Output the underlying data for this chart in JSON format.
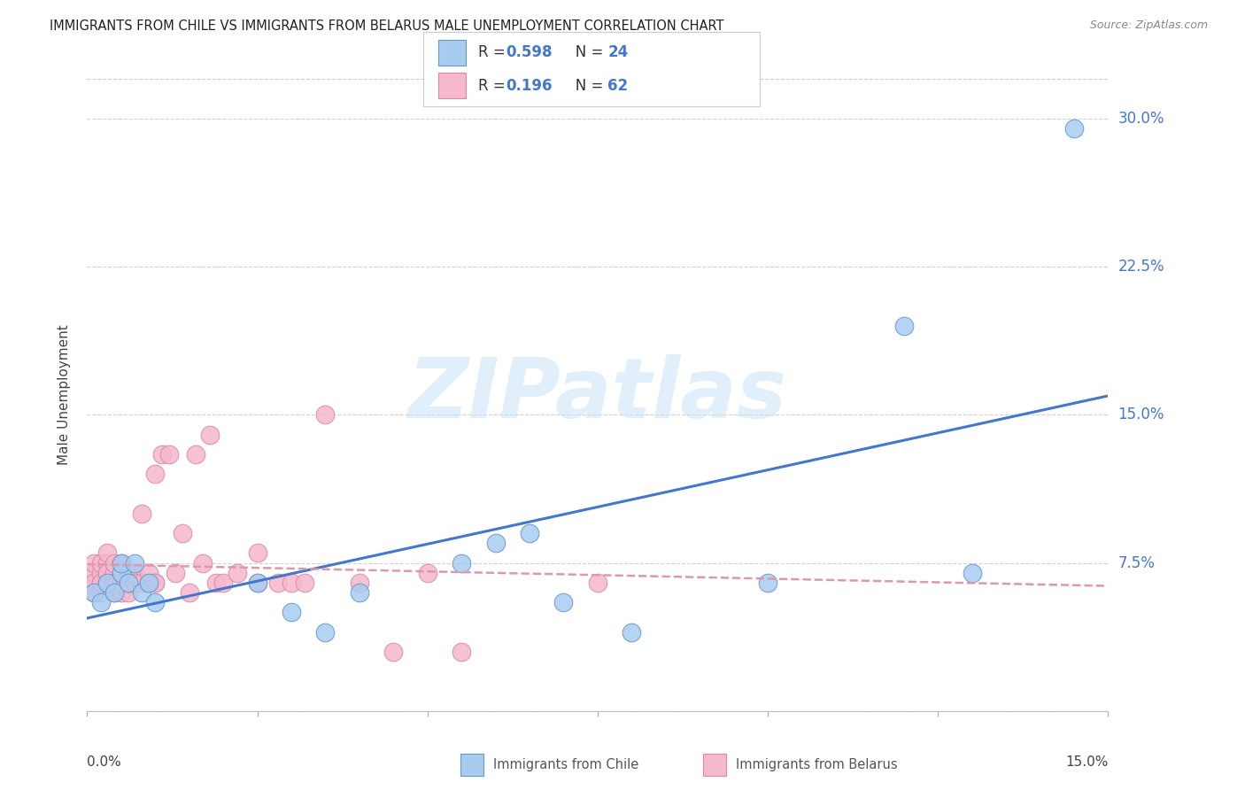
{
  "title": "IMMIGRANTS FROM CHILE VS IMMIGRANTS FROM BELARUS MALE UNEMPLOYMENT CORRELATION CHART",
  "source": "Source: ZipAtlas.com",
  "xlabel_bottom_left": "0.0%",
  "xlabel_bottom_right": "15.0%",
  "ylabel": "Male Unemployment",
  "right_yticks": [
    0.0,
    0.075,
    0.15,
    0.225,
    0.3
  ],
  "right_yticklabels": [
    "",
    "7.5%",
    "15.0%",
    "22.5%",
    "30.0%"
  ],
  "xlim": [
    0.0,
    0.15
  ],
  "ylim": [
    0.0,
    0.32
  ],
  "chile_color": "#a8ccf0",
  "belarus_color": "#f5b8cc",
  "chile_edge": "#6699cc",
  "belarus_edge": "#dd88aa",
  "trend_chile_color": "#4477cc",
  "trend_belarus_color": "#dd99aa",
  "watermark": "ZIPatlas",
  "legend_text_color": "#4477cc",
  "legend_R_N_color": "#4477cc",
  "chile_x": [
    0.001,
    0.002,
    0.003,
    0.004,
    0.005,
    0.005,
    0.006,
    0.007,
    0.008,
    0.009,
    0.01,
    0.025,
    0.03,
    0.035,
    0.04,
    0.055,
    0.06,
    0.065,
    0.07,
    0.08,
    0.1,
    0.12,
    0.13,
    0.145
  ],
  "chile_y": [
    0.06,
    0.055,
    0.065,
    0.06,
    0.07,
    0.075,
    0.065,
    0.075,
    0.06,
    0.065,
    0.055,
    0.065,
    0.05,
    0.04,
    0.06,
    0.075,
    0.085,
    0.09,
    0.055,
    0.04,
    0.065,
    0.195,
    0.07,
    0.295
  ],
  "belarus_x": [
    0.001,
    0.001,
    0.001,
    0.001,
    0.001,
    0.002,
    0.002,
    0.002,
    0.002,
    0.002,
    0.003,
    0.003,
    0.003,
    0.003,
    0.003,
    0.003,
    0.004,
    0.004,
    0.004,
    0.004,
    0.004,
    0.005,
    0.005,
    0.005,
    0.005,
    0.005,
    0.006,
    0.006,
    0.006,
    0.006,
    0.007,
    0.007,
    0.007,
    0.008,
    0.008,
    0.009,
    0.009,
    0.01,
    0.01,
    0.01,
    0.011,
    0.012,
    0.013,
    0.014,
    0.015,
    0.016,
    0.017,
    0.018,
    0.019,
    0.02,
    0.022,
    0.025,
    0.025,
    0.028,
    0.03,
    0.032,
    0.035,
    0.04,
    0.045,
    0.05,
    0.055,
    0.075
  ],
  "belarus_y": [
    0.065,
    0.07,
    0.075,
    0.06,
    0.065,
    0.065,
    0.07,
    0.075,
    0.06,
    0.065,
    0.065,
    0.07,
    0.075,
    0.08,
    0.065,
    0.07,
    0.06,
    0.065,
    0.07,
    0.075,
    0.065,
    0.06,
    0.065,
    0.07,
    0.075,
    0.065,
    0.06,
    0.065,
    0.07,
    0.065,
    0.065,
    0.07,
    0.065,
    0.065,
    0.1,
    0.065,
    0.07,
    0.065,
    0.12,
    0.065,
    0.13,
    0.13,
    0.07,
    0.09,
    0.06,
    0.13,
    0.075,
    0.14,
    0.065,
    0.065,
    0.07,
    0.08,
    0.065,
    0.065,
    0.065,
    0.065,
    0.15,
    0.065,
    0.03,
    0.07,
    0.03,
    0.065
  ]
}
